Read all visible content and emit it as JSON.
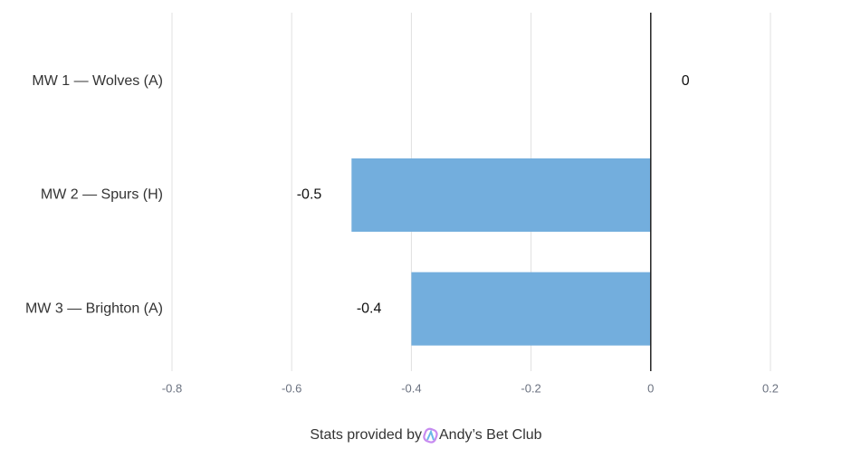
{
  "chart_data": {
    "type": "bar",
    "orientation": "horizontal",
    "categories": [
      "MW 1 — Wolves (A)",
      "MW 2 — Spurs (H)",
      "MW 3 — Brighton (A)"
    ],
    "values": [
      0,
      -0.5,
      -0.4
    ],
    "color": "#73aedd",
    "xlim": [
      -0.8,
      0.2
    ],
    "xticks": [
      -0.8,
      -0.6,
      -0.4,
      -0.2,
      0,
      0.2
    ],
    "grid": true,
    "credit_prefix": "Stats provided by",
    "credit_name": "Andy’s Bet Club"
  }
}
